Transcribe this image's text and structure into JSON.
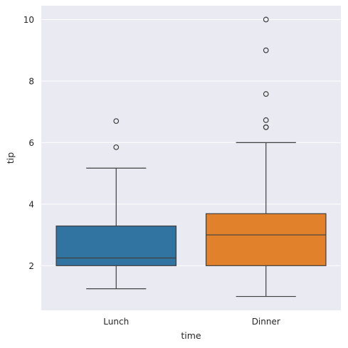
{
  "chart_data": {
    "type": "box",
    "xlabel": "time",
    "ylabel": "tip",
    "categories": [
      "Lunch",
      "Dinner"
    ],
    "ylim": [
      0.55,
      10.45
    ],
    "yticks": [
      2,
      4,
      6,
      8,
      10
    ],
    "grid": true,
    "background": "#eaeaf2",
    "grid_color": "#ffffff",
    "series": [
      {
        "category": "Lunch",
        "color": "#3274a1",
        "whisker_low": 1.25,
        "q1": 2.0,
        "median": 2.25,
        "q3": 3.29,
        "whisker_high": 5.17,
        "outliers": [
          5.85,
          6.7
        ]
      },
      {
        "category": "Dinner",
        "color": "#e1812c",
        "whisker_low": 1.0,
        "q1": 2.0,
        "median": 3.0,
        "q3": 3.69,
        "whisker_high": 6.0,
        "outliers": [
          6.5,
          6.5,
          6.73,
          7.58,
          9.0,
          10.0
        ]
      }
    ]
  }
}
